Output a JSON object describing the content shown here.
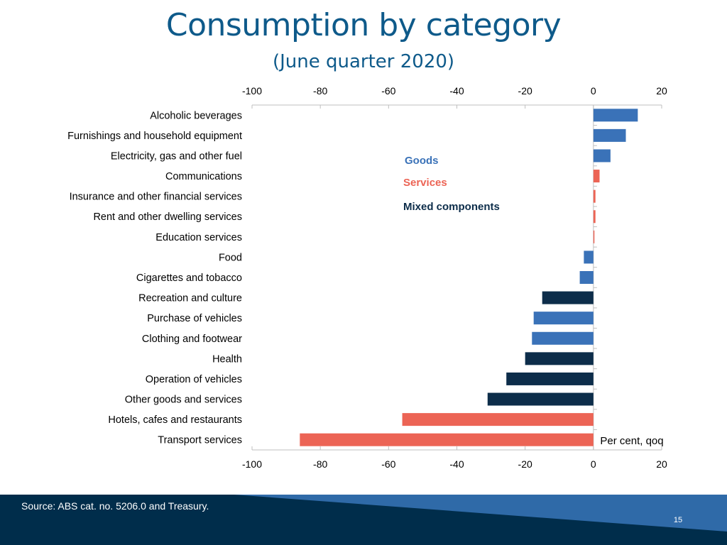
{
  "slide": {
    "title": "Consumption by category",
    "subtitle": "(June quarter 2020)",
    "source": "Source: ABS cat. no. 5206.0 and Treasury.",
    "page_number": "15"
  },
  "colors": {
    "goods": "#3a72b8",
    "services": "#ec6455",
    "mixed": "#0d2d4a",
    "title": "#0e5a8a",
    "footer": "#002d4b",
    "footer_accent": "#2f6aa8"
  },
  "chart_data": {
    "type": "bar",
    "orientation": "horizontal",
    "title": "Consumption by category",
    "subtitle": "(June quarter 2020)",
    "unit_label": "Per cent, qoq",
    "xlim": [
      -100,
      20
    ],
    "xticks": [
      -100,
      -80,
      -60,
      -40,
      -20,
      0,
      20
    ],
    "legend": [
      {
        "key": "goods",
        "label": "Goods"
      },
      {
        "key": "services",
        "label": "Services"
      },
      {
        "key": "mixed",
        "label": "Mixed components"
      }
    ],
    "categories": [
      "Alcoholic beverages",
      "Furnishings and household equipment",
      "Electricity, gas and other fuel",
      "Communications",
      "Insurance and other financial services",
      "Rent and other dwelling services",
      "Education services",
      "Food",
      "Cigarettes and tobacco ",
      "Recreation and culture",
      "Purchase of vehicles",
      "Clothing and footwear",
      "Health",
      "Operation of vehicles",
      "Other goods and services",
      "Hotels, cafes and restaurants",
      "Transport services"
    ],
    "values": [
      13,
      9.5,
      5,
      1.8,
      0.6,
      0.6,
      0.3,
      -2.8,
      -4,
      -15,
      -17.5,
      -18,
      -20,
      -25.5,
      -31,
      -56,
      -86
    ],
    "groups": [
      "goods",
      "goods",
      "goods",
      "services",
      "services",
      "services",
      "services",
      "goods",
      "goods",
      "mixed",
      "goods",
      "goods",
      "mixed",
      "mixed",
      "mixed",
      "services",
      "services"
    ]
  }
}
